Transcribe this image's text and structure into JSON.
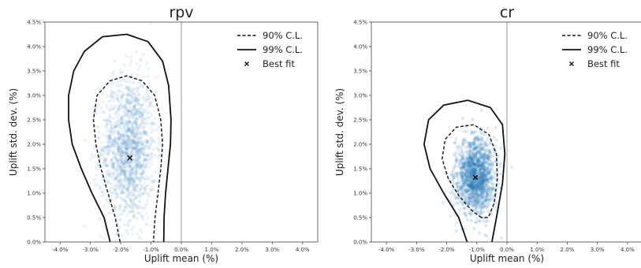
{
  "chart_data": [
    {
      "type": "scatter",
      "title": "rpv",
      "xlabel": "Uplift mean (%)",
      "ylabel": "Uplift std. dev. (%)",
      "xlim": [
        -4.5,
        4.5
      ],
      "ylim": [
        0,
        4.5
      ],
      "x_ticks": [
        -4.0,
        -3.0,
        -2.0,
        -1.0,
        0.0,
        1.0,
        2.0,
        3.0,
        4.0
      ],
      "x_tick_labels": [
        "-4.0%",
        "-3.0%",
        "-2.0%",
        "-1.0%",
        "0.0%",
        "1.0%",
        "2.0%",
        "3.0%",
        "4.0%"
      ],
      "y_ticks": [
        0.0,
        0.5,
        1.0,
        1.5,
        2.0,
        2.5,
        3.0,
        3.5,
        4.0,
        4.5
      ],
      "y_tick_labels": [
        "0.0%",
        "0.5%",
        "1.0%",
        "1.5%",
        "2.0%",
        "2.5%",
        "3.0%",
        "3.5%",
        "4.0%",
        "4.5%"
      ],
      "reference_line_x": 0.0,
      "best_fit": {
        "x": -1.7,
        "y": 1.72
      },
      "scatter_color": "#2b7bb9",
      "contours": [
        {
          "name": "90% C.L.",
          "style": "dashed",
          "points": [
            [
              -2.02,
              0.0
            ],
            [
              -2.18,
              0.5
            ],
            [
              -2.42,
              1.0
            ],
            [
              -2.65,
              1.5
            ],
            [
              -2.82,
              2.0
            ],
            [
              -2.9,
              2.5
            ],
            [
              -2.78,
              3.0
            ],
            [
              -2.35,
              3.3
            ],
            [
              -1.8,
              3.4
            ],
            [
              -1.3,
              3.3
            ],
            [
              -0.88,
              3.0
            ],
            [
              -0.68,
              2.5
            ],
            [
              -0.62,
              2.0
            ],
            [
              -0.68,
              1.5
            ],
            [
              -0.77,
              1.0
            ],
            [
              -0.87,
              0.5
            ],
            [
              -0.92,
              0.0
            ]
          ]
        },
        {
          "name": "99% C.L.",
          "style": "solid",
          "points": [
            [
              -2.35,
              0.0
            ],
            [
              -2.55,
              0.5
            ],
            [
              -2.95,
              1.0
            ],
            [
              -3.3,
              1.5
            ],
            [
              -3.6,
              2.0
            ],
            [
              -3.72,
              2.5
            ],
            [
              -3.72,
              3.0
            ],
            [
              -3.55,
              3.5
            ],
            [
              -3.2,
              3.9
            ],
            [
              -2.6,
              4.2
            ],
            [
              -1.8,
              4.25
            ],
            [
              -1.1,
              4.1
            ],
            [
              -0.62,
              3.7
            ],
            [
              -0.42,
              3.2
            ],
            [
              -0.34,
              2.5
            ],
            [
              -0.36,
              2.0
            ],
            [
              -0.44,
              1.5
            ],
            [
              -0.52,
              1.0
            ],
            [
              -0.57,
              0.5
            ],
            [
              -0.58,
              0.0
            ]
          ]
        }
      ],
      "cloud": {
        "center_x": -1.75,
        "center_y": 1.9,
        "spread_x": 0.45,
        "spread_y": 0.75,
        "density": "broad"
      },
      "legend": {
        "position": "top-right",
        "entries": [
          "90% C.L.",
          "99% C.L.",
          "Best fit"
        ]
      }
    },
    {
      "type": "scatter",
      "title": "cr",
      "xlabel": "Uplift mean (%)",
      "ylabel": "Uplift std. dev. (%)",
      "xlim": [
        -4.5,
        4.5
      ],
      "ylim": [
        0,
        4.5
      ],
      "x_ticks": [
        -4.0,
        -3.0,
        -2.0,
        -1.0,
        0.0,
        1.0,
        2.0,
        3.0,
        4.0
      ],
      "x_tick_labels": [
        "-4.0%",
        "-3.0%",
        "-2.0%",
        "-1.0%",
        "0.0%",
        "1.0%",
        "2.0%",
        "3.0%",
        "4.0%"
      ],
      "y_ticks": [
        0.0,
        0.5,
        1.0,
        1.5,
        2.0,
        2.5,
        3.0,
        3.5,
        4.0,
        4.5
      ],
      "y_tick_labels": [
        "0.0%",
        "0.5%",
        "1.0%",
        "1.5%",
        "2.0%",
        "2.5%",
        "3.0%",
        "3.5%",
        "4.0%",
        "4.5%"
      ],
      "reference_line_x": 0.0,
      "best_fit": {
        "x": -1.05,
        "y": 1.32
      },
      "scatter_color": "#2b7bb9",
      "contours": [
        {
          "name": "90% C.L.",
          "style": "dashed",
          "points": [
            [
              -0.85,
              0.5
            ],
            [
              -1.18,
              0.65
            ],
            [
              -1.6,
              0.95
            ],
            [
              -1.95,
              1.3
            ],
            [
              -2.15,
              1.7
            ],
            [
              -2.05,
              2.1
            ],
            [
              -1.68,
              2.35
            ],
            [
              -1.1,
              2.4
            ],
            [
              -0.6,
              2.2
            ],
            [
              -0.35,
              1.8
            ],
            [
              -0.32,
              1.3
            ],
            [
              -0.42,
              0.8
            ],
            [
              -0.62,
              0.5
            ],
            [
              -0.85,
              0.5
            ]
          ]
        },
        {
          "name": "99% C.L.",
          "style": "solid",
          "points": [
            [
              -1.32,
              0.0
            ],
            [
              -1.6,
              0.5
            ],
            [
              -2.1,
              1.0
            ],
            [
              -2.55,
              1.5
            ],
            [
              -2.75,
              2.0
            ],
            [
              -2.6,
              2.5
            ],
            [
              -2.1,
              2.8
            ],
            [
              -1.3,
              2.9
            ],
            [
              -0.55,
              2.75
            ],
            [
              -0.15,
              2.4
            ],
            [
              -0.07,
              1.8
            ],
            [
              -0.15,
              1.2
            ],
            [
              -0.32,
              0.6
            ],
            [
              -0.5,
              0.0
            ]
          ]
        }
      ],
      "cloud": {
        "center_x": -1.05,
        "center_y": 1.35,
        "spread_x": 0.32,
        "spread_y": 0.38,
        "density": "dense"
      },
      "legend": {
        "position": "top-right",
        "entries": [
          "90% C.L.",
          "99% C.L.",
          "Best fit"
        ]
      }
    }
  ]
}
